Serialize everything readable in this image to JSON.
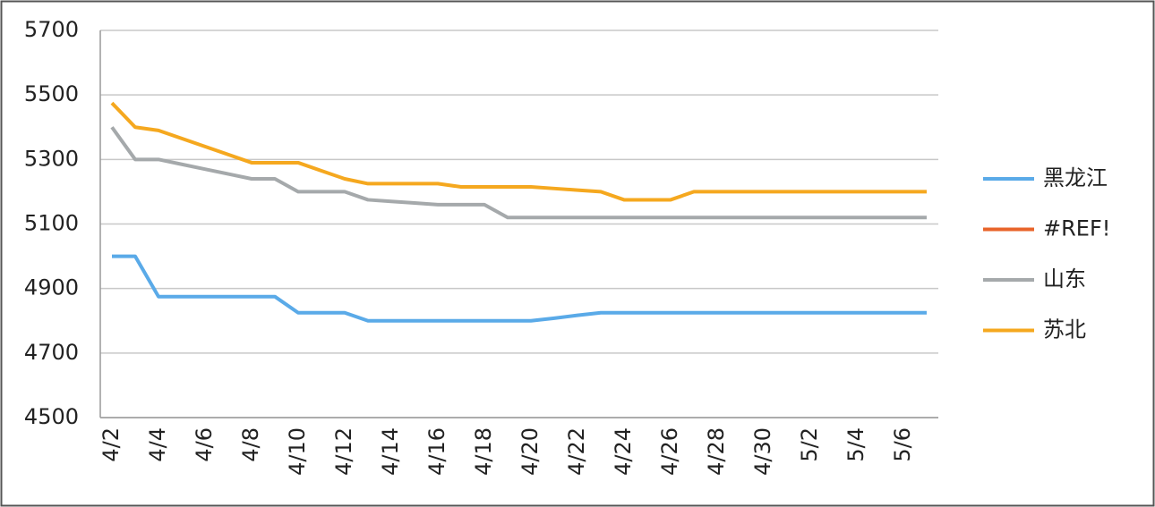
{
  "chart_data": {
    "type": "line",
    "categories": [
      "4/2",
      null,
      "4/4",
      null,
      "4/6",
      null,
      "4/8",
      null,
      "4/10",
      null,
      "4/12",
      null,
      "4/14",
      null,
      "4/16",
      null,
      "4/18",
      null,
      "4/20",
      null,
      "4/22",
      null,
      "4/24",
      null,
      "4/26",
      null,
      "4/28",
      null,
      "4/30",
      null,
      "5/2",
      null,
      "5/4",
      null,
      "5/6",
      null
    ],
    "series": [
      {
        "name": "黑龙江",
        "color": "#5aaae8",
        "values": [
          5000,
          5000,
          4875,
          4875,
          4875,
          4875,
          4875,
          4875,
          4825,
          4825,
          4825,
          4800,
          4800,
          4800,
          4800,
          4800,
          4800,
          4800,
          4800,
          4808,
          4817,
          4825,
          4825,
          4825,
          4825,
          4825,
          4825,
          4825,
          4825,
          4825,
          4825,
          4825,
          4825,
          4825,
          4825,
          4825
        ]
      },
      {
        "name": "#REF!",
        "color": "#e8642a",
        "values": [
          null,
          null,
          null,
          null,
          null,
          null,
          null,
          null,
          null,
          null,
          null,
          null,
          null,
          null,
          null,
          null,
          null,
          null,
          null,
          null,
          null,
          null,
          null,
          null,
          null,
          null,
          null,
          null,
          null,
          null,
          null,
          null,
          null,
          null,
          null,
          null
        ]
      },
      {
        "name": "山东",
        "color": "#a5a9ab",
        "values": [
          5400,
          5300,
          5300,
          5285,
          5270,
          5255,
          5240,
          5240,
          5200,
          5200,
          5200,
          5175,
          5170,
          5165,
          5160,
          5160,
          5160,
          5120,
          5120,
          5120,
          5120,
          5120,
          5120,
          5120,
          5120,
          5120,
          5120,
          5120,
          5120,
          5120,
          5120,
          5120,
          5120,
          5120,
          5120,
          5120
        ]
      },
      {
        "name": "苏北",
        "color": "#f5a81f",
        "values": [
          5475,
          5400,
          5390,
          5365,
          5340,
          5315,
          5290,
          5290,
          5290,
          5265,
          5240,
          5225,
          5225,
          5225,
          5225,
          5215,
          5215,
          5215,
          5215,
          5210,
          5205,
          5200,
          5175,
          5175,
          5175,
          5200,
          5200,
          5200,
          5200,
          5200,
          5200,
          5200,
          5200,
          5200,
          5200,
          5200
        ]
      }
    ],
    "ylim": [
      4500,
      5700
    ],
    "yticks": [
      4500,
      4700,
      4900,
      5100,
      5300,
      5500,
      5700
    ],
    "grid": true,
    "legend": "right"
  }
}
